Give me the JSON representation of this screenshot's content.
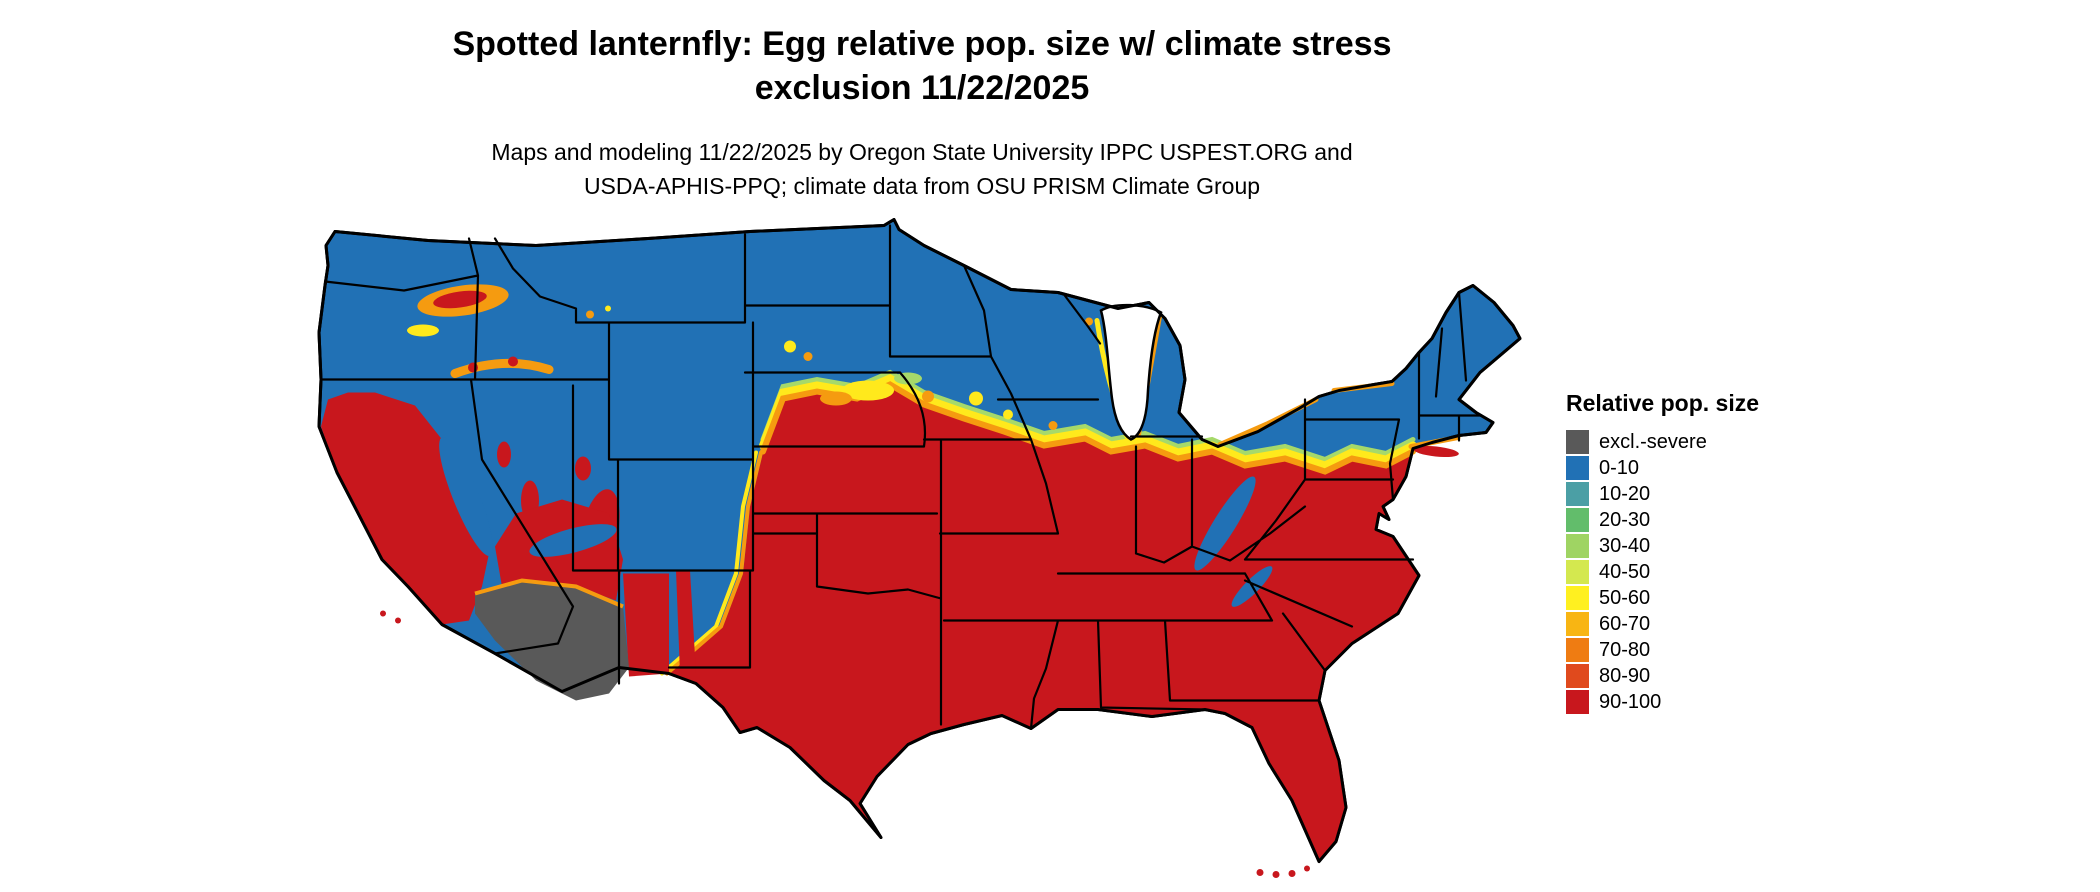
{
  "header": {
    "title_line1": "Spotted lanternfly: Egg relative pop. size w/ climate stress",
    "title_line2": "exclusion 11/22/2025",
    "subtitle_line1": "Maps and modeling 11/22/2025 by Oregon State University IPPC USPEST.ORG and",
    "subtitle_line2": "USDA-APHIS-PPQ; climate data from OSU PRISM Climate Group"
  },
  "legend": {
    "title": "Relative pop. size",
    "items": [
      {
        "label": "excl.-severe",
        "color": "#595959"
      },
      {
        "label": "0-10",
        "color": "#2171b5"
      },
      {
        "label": "10-20",
        "color": "#4b9fa5"
      },
      {
        "label": "20-30",
        "color": "#62bd6b"
      },
      {
        "label": "30-40",
        "color": "#9fd463"
      },
      {
        "label": "40-50",
        "color": "#d4e84f"
      },
      {
        "label": "50-60",
        "color": "#fff020"
      },
      {
        "label": "60-70",
        "color": "#f8b513"
      },
      {
        "label": "70-80",
        "color": "#ef7c12"
      },
      {
        "label": "80-90",
        "color": "#e04a1d"
      },
      {
        "label": "90-100",
        "color": "#c8171d"
      }
    ]
  },
  "map": {
    "palette": {
      "excluded": "#595959",
      "low": "#2171b5",
      "high": "#c8171d",
      "band_green": "#a6d96a",
      "band_yellow": "#ffe91c",
      "band_orange": "#f59b10",
      "water": "#ffffff",
      "border": "#000000"
    }
  }
}
